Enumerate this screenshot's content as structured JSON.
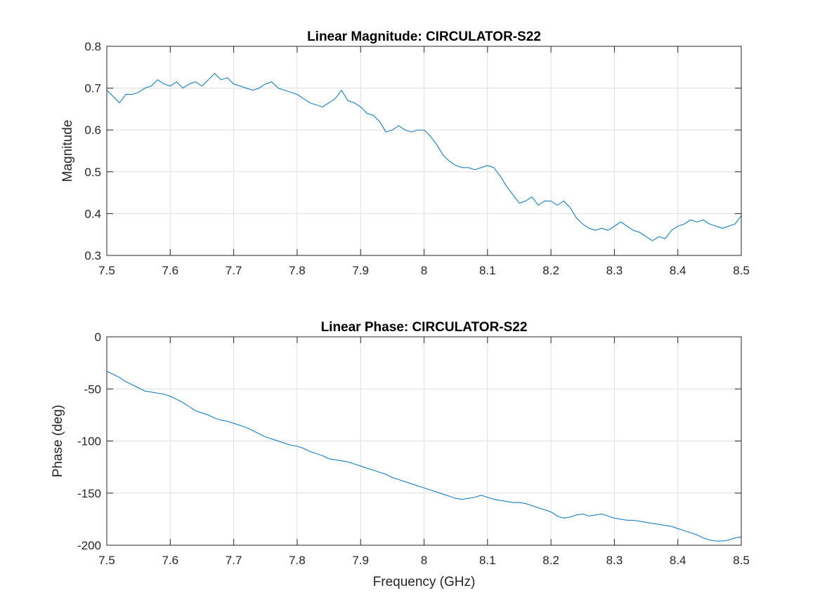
{
  "chart_data": [
    {
      "type": "line",
      "title": "Linear Magnitude: CIRCULATOR-S22",
      "xlabel": "",
      "ylabel": "Magnitude",
      "xlim": [
        7.5,
        8.5
      ],
      "ylim": [
        0.3,
        0.8
      ],
      "x_ticks": [
        "7.5",
        "7.6",
        "7.7",
        "7.8",
        "7.9",
        "8",
        "8.1",
        "8.2",
        "8.3",
        "8.4",
        "8.5"
      ],
      "y_ticks": [
        "0.3",
        "0.4",
        "0.5",
        "0.6",
        "0.7",
        "0.8"
      ],
      "grid": true,
      "color": "#0072bd",
      "series": [
        {
          "x": [
            7.5,
            7.51,
            7.52,
            7.53,
            7.54,
            7.55,
            7.56,
            7.57,
            7.58,
            7.59,
            7.6,
            7.61,
            7.62,
            7.63,
            7.64,
            7.65,
            7.66,
            7.67,
            7.68,
            7.69,
            7.7,
            7.71,
            7.72,
            7.73,
            7.74,
            7.75,
            7.76,
            7.77,
            7.78,
            7.79,
            7.8,
            7.81,
            7.82,
            7.83,
            7.84,
            7.85,
            7.86,
            7.87,
            7.88,
            7.89,
            7.9,
            7.91,
            7.92,
            7.93,
            7.94,
            7.95,
            7.96,
            7.97,
            7.98,
            7.99,
            8.0,
            8.01,
            8.02,
            8.03,
            8.04,
            8.05,
            8.06,
            8.07,
            8.08,
            8.09,
            8.1,
            8.11,
            8.12,
            8.13,
            8.14,
            8.15,
            8.16,
            8.17,
            8.18,
            8.19,
            8.2,
            8.21,
            8.22,
            8.23,
            8.24,
            8.25,
            8.26,
            8.27,
            8.28,
            8.29,
            8.3,
            8.31,
            8.32,
            8.33,
            8.34,
            8.35,
            8.36,
            8.37,
            8.38,
            8.39,
            8.4,
            8.41,
            8.42,
            8.43,
            8.44,
            8.45,
            8.46,
            8.47,
            8.48,
            8.49,
            8.5
          ],
          "values": [
            0.695,
            0.68,
            0.665,
            0.685,
            0.685,
            0.69,
            0.7,
            0.705,
            0.72,
            0.71,
            0.705,
            0.715,
            0.7,
            0.71,
            0.715,
            0.705,
            0.72,
            0.735,
            0.72,
            0.725,
            0.71,
            0.705,
            0.7,
            0.695,
            0.7,
            0.71,
            0.715,
            0.7,
            0.695,
            0.69,
            0.685,
            0.675,
            0.665,
            0.66,
            0.655,
            0.665,
            0.675,
            0.695,
            0.67,
            0.665,
            0.655,
            0.64,
            0.635,
            0.62,
            0.595,
            0.6,
            0.61,
            0.6,
            0.595,
            0.6,
            0.6,
            0.585,
            0.565,
            0.54,
            0.525,
            0.515,
            0.51,
            0.51,
            0.505,
            0.51,
            0.515,
            0.51,
            0.49,
            0.465,
            0.445,
            0.425,
            0.43,
            0.44,
            0.42,
            0.43,
            0.43,
            0.42,
            0.43,
            0.415,
            0.39,
            0.375,
            0.365,
            0.36,
            0.365,
            0.36,
            0.37,
            0.38,
            0.37,
            0.36,
            0.355,
            0.345,
            0.335,
            0.345,
            0.34,
            0.36,
            0.37,
            0.375,
            0.385,
            0.38,
            0.385,
            0.375,
            0.37,
            0.365,
            0.37,
            0.375,
            0.395
          ]
        }
      ]
    },
    {
      "type": "line",
      "title": "Linear Phase: CIRCULATOR-S22",
      "xlabel": "Frequency (GHz)",
      "ylabel": "Phase (deg)",
      "xlim": [
        7.5,
        8.5
      ],
      "ylim": [
        -200,
        0
      ],
      "x_ticks": [
        "7.5",
        "7.6",
        "7.7",
        "7.8",
        "7.9",
        "8",
        "8.1",
        "8.2",
        "8.3",
        "8.4",
        "8.5"
      ],
      "y_ticks": [
        "-200",
        "-150",
        "-100",
        "-50",
        "0"
      ],
      "grid": true,
      "color": "#0072bd",
      "series": [
        {
          "x": [
            7.5,
            7.51,
            7.52,
            7.53,
            7.54,
            7.55,
            7.56,
            7.57,
            7.58,
            7.59,
            7.6,
            7.61,
            7.62,
            7.63,
            7.64,
            7.65,
            7.66,
            7.67,
            7.68,
            7.69,
            7.7,
            7.71,
            7.72,
            7.73,
            7.74,
            7.75,
            7.76,
            7.77,
            7.78,
            7.79,
            7.8,
            7.81,
            7.82,
            7.83,
            7.84,
            7.85,
            7.86,
            7.87,
            7.88,
            7.89,
            7.9,
            7.91,
            7.92,
            7.93,
            7.94,
            7.95,
            7.96,
            7.97,
            7.98,
            7.99,
            8.0,
            8.01,
            8.02,
            8.03,
            8.04,
            8.05,
            8.06,
            8.07,
            8.08,
            8.09,
            8.1,
            8.11,
            8.12,
            8.13,
            8.14,
            8.15,
            8.16,
            8.17,
            8.18,
            8.19,
            8.2,
            8.21,
            8.22,
            8.23,
            8.24,
            8.25,
            8.26,
            8.27,
            8.28,
            8.29,
            8.3,
            8.31,
            8.32,
            8.33,
            8.34,
            8.35,
            8.36,
            8.37,
            8.38,
            8.39,
            8.4,
            8.41,
            8.42,
            8.43,
            8.44,
            8.45,
            8.46,
            8.47,
            8.48,
            8.49,
            8.5
          ],
          "values": [
            -33,
            -36,
            -39,
            -43,
            -46,
            -49,
            -52,
            -53,
            -54,
            -55,
            -57,
            -60,
            -63,
            -67,
            -71,
            -73,
            -75,
            -78,
            -80,
            -81,
            -83,
            -85,
            -87,
            -90,
            -93,
            -96,
            -98,
            -100,
            -102,
            -104,
            -105,
            -107,
            -110,
            -112,
            -114,
            -117,
            -118,
            -119,
            -120,
            -122,
            -124,
            -126,
            -128,
            -130,
            -132,
            -135,
            -137,
            -139,
            -141,
            -143,
            -145,
            -147,
            -149,
            -151,
            -153,
            -155,
            -156,
            -155,
            -154,
            -152,
            -154,
            -156,
            -157,
            -158,
            -159,
            -159,
            -160,
            -162,
            -164,
            -166,
            -168,
            -172,
            -174,
            -173,
            -171,
            -170,
            -172,
            -171,
            -170,
            -172,
            -174,
            -175,
            -176,
            -176,
            -177,
            -178,
            -179,
            -180,
            -181,
            -182,
            -184,
            -186,
            -188,
            -190,
            -193,
            -195,
            -196,
            -196,
            -195,
            -193,
            -192
          ]
        }
      ]
    }
  ]
}
